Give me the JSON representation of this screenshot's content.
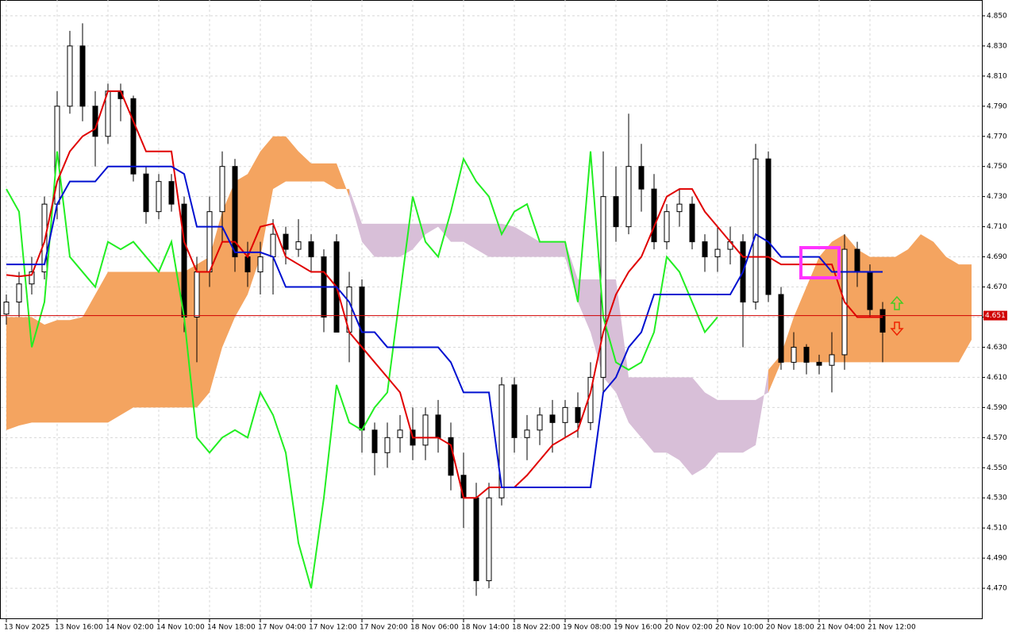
{
  "chart_data": {
    "type": "candlestick",
    "x_labels": [
      "13 Nov 2025",
      "13 Nov 16:00",
      "14 Nov 02:00",
      "14 Nov 10:00",
      "14 Nov 18:00",
      "17 Nov 04:00",
      "17 Nov 12:00",
      "17 Nov 20:00",
      "18 Nov 06:00",
      "18 Nov 14:00",
      "18 Nov 22:00",
      "19 Nov 08:00",
      "19 Nov 16:00",
      "20 Nov 02:00",
      "20 Nov 10:00",
      "20 Nov 18:00",
      "21 Nov 04:00",
      "21 Nov 12:00"
    ],
    "open": [
      4.652,
      4.66,
      4.672,
      4.68,
      4.725,
      4.79,
      4.83,
      4.79,
      4.77,
      4.8,
      4.795,
      4.745,
      4.72,
      4.74,
      4.725,
      4.65,
      4.68,
      4.72,
      4.75,
      4.69,
      4.68,
      4.69,
      4.705,
      4.695,
      4.7,
      4.69,
      4.7,
      4.64,
      4.67,
      4.575,
      4.56,
      4.57,
      4.575,
      4.565,
      4.585,
      4.57,
      4.545,
      4.53,
      4.475,
      4.53,
      4.605,
      4.57,
      4.575,
      4.585,
      4.58,
      4.59,
      4.58,
      4.61,
      4.73,
      4.71,
      4.75,
      4.735,
      4.7,
      4.72,
      4.725,
      4.7,
      4.69,
      4.695,
      4.7,
      4.66,
      4.755,
      4.665,
      4.62,
      4.63,
      4.62,
      4.618,
      4.625,
      4.695,
      4.68,
      4.655
    ],
    "high": [
      4.665,
      4.68,
      4.69,
      4.73,
      4.8,
      4.84,
      4.845,
      4.8,
      4.805,
      4.805,
      4.797,
      4.75,
      4.745,
      4.745,
      4.73,
      4.69,
      4.73,
      4.76,
      4.755,
      4.7,
      4.7,
      4.715,
      4.71,
      4.715,
      4.705,
      4.695,
      4.705,
      4.68,
      4.675,
      4.58,
      4.58,
      4.585,
      4.59,
      4.59,
      4.595,
      4.58,
      4.56,
      4.54,
      4.54,
      4.61,
      4.61,
      4.585,
      4.59,
      4.595,
      4.595,
      4.6,
      4.62,
      4.76,
      4.75,
      4.785,
      4.765,
      4.745,
      4.725,
      4.735,
      4.73,
      4.705,
      4.71,
      4.71,
      4.705,
      4.765,
      4.76,
      4.67,
      4.64,
      4.632,
      4.625,
      4.64,
      4.705,
      4.7,
      4.685,
      4.66
    ],
    "low": [
      4.645,
      4.65,
      4.665,
      4.675,
      4.715,
      4.785,
      4.78,
      4.75,
      4.765,
      4.78,
      4.74,
      4.712,
      4.715,
      4.72,
      4.64,
      4.62,
      4.67,
      4.7,
      4.68,
      4.67,
      4.665,
      4.665,
      4.685,
      4.69,
      4.68,
      4.64,
      4.64,
      4.62,
      4.56,
      4.545,
      4.55,
      4.56,
      4.555,
      4.555,
      4.56,
      4.535,
      4.51,
      4.465,
      4.47,
      4.525,
      4.56,
      4.555,
      4.565,
      4.56,
      4.57,
      4.57,
      4.575,
      4.6,
      4.7,
      4.705,
      4.72,
      4.695,
      4.695,
      4.71,
      4.695,
      4.68,
      4.68,
      4.685,
      4.63,
      4.655,
      4.66,
      4.615,
      4.615,
      4.612,
      4.612,
      4.6,
      4.615,
      4.67,
      4.65,
      4.62
    ],
    "close": [
      4.66,
      4.672,
      4.68,
      4.725,
      4.79,
      4.83,
      4.79,
      4.77,
      4.8,
      4.795,
      4.745,
      4.72,
      4.74,
      4.725,
      4.65,
      4.68,
      4.72,
      4.75,
      4.69,
      4.68,
      4.69,
      4.705,
      4.695,
      4.7,
      4.69,
      4.65,
      4.64,
      4.67,
      4.575,
      4.56,
      4.57,
      4.575,
      4.565,
      4.585,
      4.57,
      4.545,
      4.53,
      4.475,
      4.53,
      4.605,
      4.57,
      4.575,
      4.585,
      4.58,
      4.59,
      4.58,
      4.61,
      4.73,
      4.71,
      4.75,
      4.735,
      4.7,
      4.72,
      4.725,
      4.7,
      4.69,
      4.695,
      4.7,
      4.66,
      4.755,
      4.665,
      4.62,
      4.63,
      4.62,
      4.618,
      4.625,
      4.695,
      4.68,
      4.655,
      4.64
    ],
    "tenkan": {
      "color": "#e00000",
      "values": [
        4.678,
        4.677,
        4.678,
        4.7,
        4.74,
        4.76,
        4.77,
        4.775,
        4.8,
        4.8,
        4.78,
        4.76,
        4.76,
        4.76,
        4.7,
        4.68,
        4.68,
        4.7,
        4.7,
        4.69,
        4.71,
        4.712,
        4.69,
        4.685,
        4.68,
        4.68,
        4.67,
        4.64,
        4.63,
        4.62,
        4.61,
        4.6,
        4.57,
        4.57,
        4.57,
        4.565,
        4.53,
        4.53,
        4.537,
        4.537,
        4.537,
        4.545,
        4.555,
        4.565,
        4.57,
        4.575,
        4.6,
        4.64,
        4.665,
        4.68,
        4.69,
        4.71,
        4.73,
        4.735,
        4.735,
        4.72,
        4.71,
        4.7,
        4.69,
        4.69,
        4.69,
        4.685,
        4.685,
        4.685,
        4.685,
        4.685,
        4.66,
        4.65,
        4.65,
        4.65
      ]
    },
    "kijun": {
      "color": "#0010d0",
      "values": [
        4.685,
        4.685,
        4.685,
        4.685,
        4.725,
        4.74,
        4.74,
        4.74,
        4.75,
        4.75,
        4.75,
        4.75,
        4.75,
        4.75,
        4.745,
        4.71,
        4.71,
        4.71,
        4.693,
        4.693,
        4.693,
        4.69,
        4.67,
        4.67,
        4.67,
        4.67,
        4.67,
        4.66,
        4.64,
        4.64,
        4.63,
        4.63,
        4.63,
        4.63,
        4.63,
        4.62,
        4.6,
        4.6,
        4.6,
        4.537,
        4.537,
        4.537,
        4.537,
        4.537,
        4.537,
        4.537,
        4.537,
        4.6,
        4.61,
        4.63,
        4.64,
        4.665,
        4.665,
        4.665,
        4.665,
        4.665,
        4.665,
        4.665,
        4.68,
        4.705,
        4.7,
        4.69,
        4.69,
        4.69,
        4.69,
        4.68,
        4.68,
        4.68,
        4.68,
        4.68
      ]
    },
    "chikou": {
      "color": "#22ee22",
      "values": [
        4.735,
        4.72,
        4.63,
        4.66,
        4.76,
        4.69,
        4.68,
        4.67,
        4.7,
        4.695,
        4.7,
        4.69,
        4.68,
        4.7,
        4.65,
        4.57,
        4.56,
        4.57,
        4.575,
        4.57,
        4.6,
        4.585,
        4.56,
        4.5,
        4.47,
        4.53,
        4.605,
        4.58,
        4.575,
        4.59,
        4.6,
        4.665,
        4.73,
        4.7,
        4.69,
        4.72,
        4.755,
        4.74,
        4.73,
        4.705,
        4.72,
        4.725,
        4.7,
        4.7,
        4.7,
        4.66,
        4.76,
        4.65,
        4.62,
        4.615,
        4.62,
        4.64,
        4.69,
        4.68,
        4.66,
        4.64,
        4.65
      ]
    },
    "span_a": {
      "color": "#f4a460",
      "values": [
        4.65,
        4.65,
        4.65,
        4.645,
        4.648,
        4.648,
        4.65,
        4.665,
        4.68,
        4.68,
        4.68,
        4.68,
        4.68,
        4.68,
        4.68,
        4.685,
        4.69,
        4.72,
        4.74,
        4.745,
        4.76,
        4.77,
        4.77,
        4.76,
        4.752,
        4.752,
        4.752,
        4.73,
        4.7,
        4.69,
        4.69,
        4.69,
        4.695,
        4.705,
        4.71,
        4.7,
        4.7,
        4.695,
        4.69,
        4.69,
        4.69,
        4.69,
        4.69,
        4.69,
        4.69,
        4.66,
        4.64,
        4.61,
        4.6,
        4.58,
        4.57,
        4.56,
        4.56,
        4.555,
        4.545,
        4.55,
        4.56,
        4.56,
        4.56,
        4.565,
        4.615,
        4.625,
        4.65,
        4.67,
        4.69,
        4.7,
        4.705,
        4.695,
        4.69,
        4.69,
        4.69,
        4.695,
        4.705,
        4.7,
        4.69,
        4.685,
        4.685
      ]
    },
    "span_b": {
      "color": "#d8bfd8",
      "values": [
        4.575,
        4.578,
        4.58,
        4.58,
        4.58,
        4.58,
        4.58,
        4.58,
        4.58,
        4.585,
        4.59,
        4.59,
        4.59,
        4.59,
        4.59,
        4.59,
        4.6,
        4.63,
        4.65,
        4.665,
        4.69,
        4.735,
        4.74,
        4.74,
        4.74,
        4.74,
        4.735,
        4.735,
        4.712,
        4.712,
        4.712,
        4.712,
        4.712,
        4.712,
        4.712,
        4.712,
        4.712,
        4.712,
        4.712,
        4.712,
        4.71,
        4.705,
        4.7,
        4.7,
        4.7,
        4.675,
        4.675,
        4.675,
        4.675,
        4.61,
        4.61,
        4.61,
        4.61,
        4.61,
        4.61,
        4.6,
        4.595,
        4.595,
        4.595,
        4.595,
        4.6,
        4.62,
        4.62,
        4.62,
        4.62,
        4.62,
        4.62,
        4.62,
        4.62,
        4.62,
        4.62,
        4.62,
        4.62,
        4.62,
        4.62,
        4.62,
        4.635
      ]
    },
    "current_price": 4.651,
    "ylim": [
      4.4495,
      4.8605
    ],
    "yticks": [
      {
        "value": 4.47,
        "label": "4.470"
      },
      {
        "value": 4.49,
        "label": "4.490"
      },
      {
        "value": 4.51,
        "label": "4.510"
      },
      {
        "value": 4.53,
        "label": "4.530"
      },
      {
        "value": 4.55,
        "label": "4.550"
      },
      {
        "value": 4.57,
        "label": "4.570"
      },
      {
        "value": 4.59,
        "label": "4.590"
      },
      {
        "value": 4.61,
        "label": "4.610"
      },
      {
        "value": 4.63,
        "label": "4.630"
      },
      {
        "value": 4.65,
        "label": "4.650"
      },
      {
        "value": 4.67,
        "label": "4.670"
      },
      {
        "value": 4.69,
        "label": "4.690"
      },
      {
        "value": 4.71,
        "label": "4.710"
      },
      {
        "value": 4.73,
        "label": "4.730"
      },
      {
        "value": 4.75,
        "label": "4.750"
      },
      {
        "value": 4.77,
        "label": "4.770"
      },
      {
        "value": 4.79,
        "label": "4.790"
      },
      {
        "value": 4.81,
        "label": "4.810"
      },
      {
        "value": 4.83,
        "label": "4.830"
      },
      {
        "value": 4.85,
        "label": "4.850"
      }
    ],
    "grid": true
  }
}
